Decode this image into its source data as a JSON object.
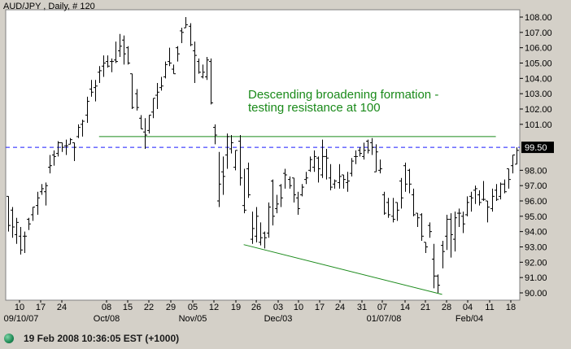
{
  "chart_data": {
    "type": "ohlc",
    "title": "AUD/JPY , Daily, # 120",
    "y_ticks": [
      "108.00",
      "107.00",
      "106.00",
      "105.00",
      "104.00",
      "103.00",
      "102.00",
      "101.00",
      "98.00",
      "97.00",
      "96.00",
      "95.00",
      "94.00",
      "93.00",
      "92.00",
      "91.00",
      "90.00"
    ],
    "y_tick_values": [
      108,
      107,
      106,
      105,
      104,
      103,
      102,
      101,
      98,
      97,
      96,
      95,
      94,
      93,
      92,
      91,
      90
    ],
    "ylim": [
      89.7,
      108.4
    ],
    "x_day_labels": [
      "10",
      "17",
      "24",
      "08",
      "15",
      "22",
      "29",
      "05",
      "12",
      "19",
      "26",
      "03",
      "10",
      "17",
      "24",
      "31",
      "07",
      "14",
      "21",
      "28",
      "04",
      "11",
      "18"
    ],
    "x_month_labels": [
      "09/10/07",
      "Oct/08",
      "Nov/05",
      "Dec/03",
      "01/07/08",
      "Feb/04"
    ],
    "reference_level": {
      "label": "99.50",
      "value": 99.5,
      "style": "dashed"
    },
    "resistance_line": {
      "from_bar": 22,
      "to_bar": 118,
      "value": 100.2
    },
    "support_line": {
      "from": [
        57,
        93.15
      ],
      "to": [
        105,
        89.9
      ]
    },
    "annotation": [
      "Descending broadening formation -",
      "testing resistance at 100"
    ],
    "colors": {
      "plot_bg": "#ffffff",
      "bars": "#000000",
      "lines": "#1a8a1a",
      "dashed": "#1a1aff",
      "badge_bg": "#000000",
      "badge_text": "#ffffff"
    },
    "series": [
      {
        "bars": [
          [
            96.3,
            96.3,
            94.0,
            94.4
          ],
          [
            95.4,
            95.6,
            93.6,
            94.3
          ],
          [
            93.8,
            94.9,
            93.2,
            94.6
          ],
          [
            93.7,
            94.3,
            92.5,
            92.8
          ],
          [
            93.7,
            94.0,
            92.6,
            93.7
          ],
          [
            94.8,
            94.9,
            94.1,
            94.5
          ],
          [
            95.1,
            95.6,
            94.7,
            95.6
          ],
          [
            95.7,
            96.6,
            95.1,
            96.2
          ],
          [
            96.6,
            97.1,
            96.4,
            96.8
          ],
          [
            96.6,
            97.2,
            95.7,
            97.0
          ],
          [
            98.2,
            99.0,
            97.8,
            98.3
          ],
          [
            99.0,
            99.3,
            98.3,
            98.9
          ],
          [
            99.1,
            99.9,
            98.9,
            99.8
          ],
          [
            99.8,
            99.8,
            99.2,
            99.5
          ],
          [
            99.6,
            100.0,
            99.0,
            99.6
          ],
          [
            99.7,
            100.1,
            99.7,
            100.0
          ],
          [
            99.8,
            99.8,
            98.6,
            99.5
          ],
          [
            100.2,
            101.0,
            100.1,
            100.8
          ],
          [
            101.0,
            101.3,
            100.2,
            101.2
          ],
          [
            101.6,
            102.8,
            101.1,
            102.5
          ],
          [
            103.3,
            103.9,
            102.8,
            103.1
          ],
          [
            103.4,
            103.9,
            102.5,
            103.5
          ],
          [
            104.4,
            104.8,
            103.7,
            104.5
          ],
          [
            104.8,
            105.5,
            104.1,
            105.0
          ],
          [
            105.1,
            105.5,
            104.7,
            104.8
          ],
          [
            105.1,
            105.3,
            104.4,
            105.1
          ],
          [
            105.2,
            106.4,
            105.0,
            105.1
          ],
          [
            105.8,
            106.9,
            105.4,
            106.1
          ],
          [
            106.5,
            106.8,
            104.9,
            105.6
          ],
          [
            106.0,
            106.1,
            104.9,
            105.0
          ],
          [
            104.3,
            104.3,
            102.0,
            102.1
          ],
          [
            103.0,
            103.3,
            101.9,
            102.1
          ],
          [
            101.4,
            101.6,
            100.7,
            100.7
          ],
          [
            100.5,
            101.4,
            99.4,
            100.3
          ],
          [
            100.6,
            101.6,
            100.4,
            101.6
          ],
          [
            101.8,
            102.7,
            101.4,
            102.7
          ],
          [
            102.9,
            103.7,
            102.0,
            103.1
          ],
          [
            103.4,
            104.1,
            103.2,
            103.5
          ],
          [
            104.1,
            105.1,
            104.0,
            104.9
          ],
          [
            105.1,
            106.0,
            104.8,
            105.0
          ],
          [
            104.6,
            104.9,
            104.3,
            104.3
          ],
          [
            106.0,
            106.1,
            105.1,
            105.6
          ],
          [
            107.1,
            107.3,
            106.3,
            107.0
          ],
          [
            107.3,
            108.0,
            107.3,
            107.5
          ],
          [
            107.4,
            107.6,
            106.1,
            106.2
          ],
          [
            105.8,
            106.4,
            103.7,
            105.5
          ],
          [
            105.1,
            105.3,
            104.3,
            104.4
          ],
          [
            104.1,
            104.9,
            104.0,
            104.4
          ],
          [
            104.1,
            105.4,
            103.9,
            105.2
          ],
          [
            105.1,
            105.3,
            102.3,
            102.4
          ],
          [
            100.8,
            101.0,
            99.7,
            100.3
          ],
          [
            96.0,
            99.2,
            95.6,
            97.1
          ],
          [
            97.9,
            98.9,
            96.4,
            97.6
          ],
          [
            99.0,
            100.4,
            98.1,
            100.2
          ],
          [
            99.4,
            100.3,
            99.1,
            99.8
          ],
          [
            98.2,
            99.3,
            98.0,
            99.3
          ],
          [
            99.9,
            100.3,
            97.0,
            97.5
          ],
          [
            95.7,
            98.1,
            95.2,
            95.4
          ],
          [
            98.1,
            98.5,
            96.2,
            96.4
          ],
          [
            93.5,
            95.3,
            93.2,
            94.2
          ],
          [
            93.7,
            95.6,
            93.3,
            95.0
          ],
          [
            93.3,
            94.6,
            93.1,
            93.6
          ],
          [
            93.9,
            94.0,
            92.9,
            93.6
          ],
          [
            93.9,
            95.9,
            93.6,
            95.6
          ],
          [
            97.3,
            97.4,
            94.4,
            95.0
          ],
          [
            95.5,
            96.4,
            95.2,
            95.8
          ],
          [
            97.0,
            97.1,
            95.6,
            96.2
          ],
          [
            97.8,
            98.1,
            96.8,
            97.7
          ],
          [
            97.4,
            97.6,
            96.8,
            97.0
          ],
          [
            97.5,
            97.5,
            95.9,
            96.4
          ],
          [
            96.2,
            96.6,
            95.1,
            95.5
          ],
          [
            96.4,
            97.1,
            96.3,
            96.9
          ],
          [
            97.4,
            97.9,
            97.1,
            97.5
          ],
          [
            98.0,
            98.9,
            97.9,
            98.7
          ],
          [
            98.2,
            99.3,
            97.9,
            98.9
          ],
          [
            98.8,
            98.9,
            97.2,
            98.1
          ],
          [
            97.7,
            100.0,
            97.5,
            98.9
          ],
          [
            98.9,
            99.4,
            97.4,
            98.8
          ],
          [
            97.5,
            98.4,
            96.7,
            96.9
          ],
          [
            97.1,
            97.4,
            96.8,
            97.3
          ],
          [
            97.2,
            98.4,
            96.8,
            97.6
          ],
          [
            97.7,
            97.7,
            96.8,
            97.4
          ],
          [
            97.2,
            97.9,
            96.6,
            97.3
          ],
          [
            97.8,
            98.8,
            97.6,
            98.6
          ],
          [
            98.9,
            99.3,
            98.4,
            98.9
          ],
          [
            99.3,
            99.5,
            98.9,
            99.1
          ],
          [
            98.9,
            99.8,
            98.7,
            99.3
          ],
          [
            99.9,
            100.0,
            99.1,
            99.3
          ],
          [
            99.8,
            100.1,
            99.0,
            99.5
          ],
          [
            97.9,
            99.7,
            97.9,
            99.2
          ],
          [
            98.0,
            98.7,
            97.8,
            98.1
          ],
          [
            96.4,
            96.6,
            95.1,
            95.2
          ],
          [
            95.9,
            96.2,
            94.9,
            95.1
          ],
          [
            95.0,
            96.2,
            94.6,
            94.8
          ],
          [
            95.9,
            95.9,
            94.7,
            95.4
          ],
          [
            97.3,
            97.5,
            95.5,
            96.2
          ],
          [
            98.3,
            98.5,
            96.6,
            97.1
          ],
          [
            98.0,
            98.1,
            96.5,
            97.1
          ],
          [
            96.4,
            96.8,
            95.0,
            95.1
          ],
          [
            95.2,
            95.2,
            94.3,
            94.9
          ],
          [
            95.1,
            95.2,
            93.4,
            93.7
          ],
          [
            93.3,
            93.3,
            92.6,
            93.0
          ],
          [
            94.4,
            94.6,
            93.6,
            94.0
          ],
          [
            92.2,
            93.2,
            90.3,
            91.1
          ],
          [
            91.1,
            91.2,
            90.0,
            90.5
          ],
          [
            93.1,
            93.4,
            91.6,
            92.7
          ],
          [
            93.7,
            95.1,
            92.8,
            94.8
          ],
          [
            94.8,
            95.2,
            92.3,
            93.8
          ],
          [
            93.5,
            95.3,
            92.7,
            94.9
          ],
          [
            95.2,
            95.5,
            94.3,
            95.2
          ],
          [
            95.0,
            95.3,
            93.9,
            94.5
          ],
          [
            95.1,
            96.3,
            95.0,
            95.9
          ],
          [
            96.3,
            96.6,
            95.3,
            96.2
          ],
          [
            96.7,
            97.0,
            95.8,
            96.8
          ],
          [
            96.4,
            96.7,
            95.7,
            95.9
          ],
          [
            96.1,
            97.3,
            96.0,
            96.1
          ],
          [
            96.0,
            96.0,
            94.6,
            95.6
          ],
          [
            95.5,
            96.8,
            95.3,
            96.3
          ],
          [
            96.7,
            97.1,
            96.0,
            96.1
          ],
          [
            96.3,
            97.2,
            96.1,
            97.1
          ],
          [
            97.1,
            97.4,
            96.5,
            96.6
          ],
          [
            98.1,
            98.1,
            96.8,
            97.4
          ],
          [
            98.3,
            99.0,
            97.8,
            99.0
          ],
          [
            98.4,
            99.5,
            98.4,
            99.3
          ]
        ]
      }
    ]
  },
  "status": {
    "datetime": "19 Feb 2008 10:36:05  EST (+1000)"
  }
}
